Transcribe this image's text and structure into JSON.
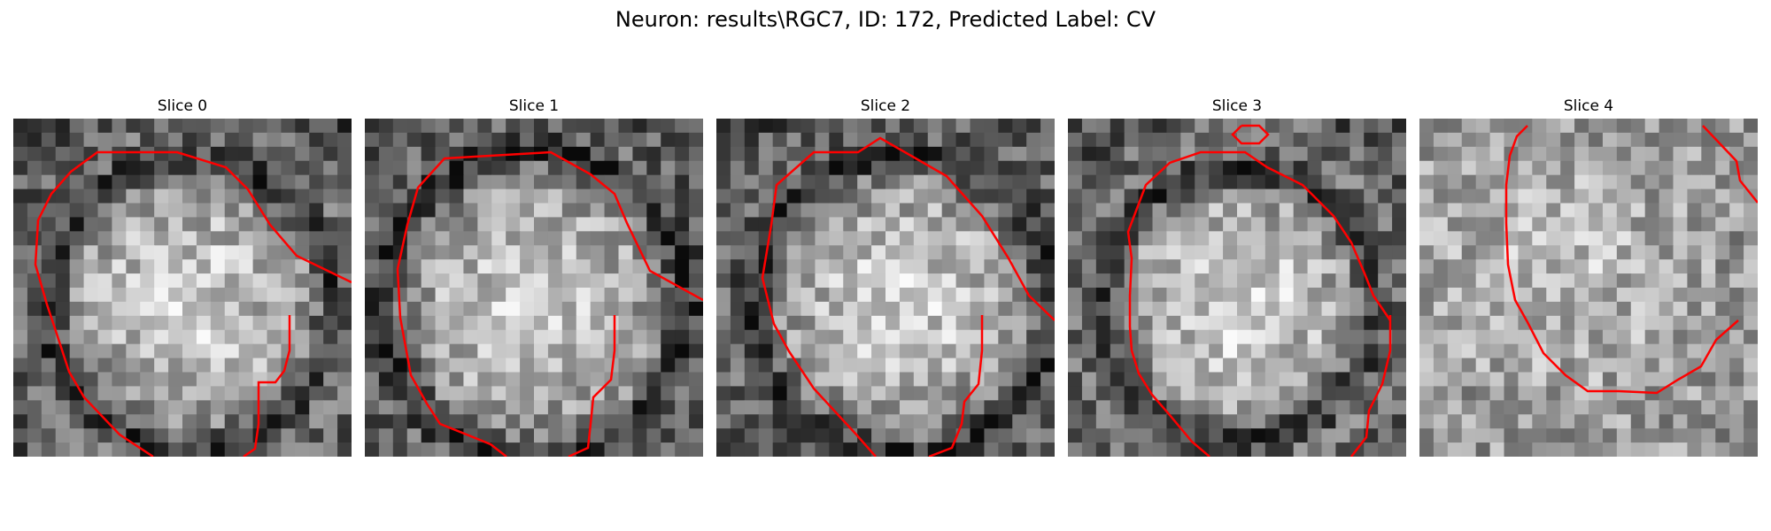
{
  "figure": {
    "title": "Neuron: results\\RGC7, ID: 172, Predicted Label: CV",
    "contour_color": "#ff0000",
    "colormap": "gray",
    "panels": [
      {
        "title": "Slice 0",
        "seed": 11,
        "bright_center": [
          0.52,
          0.55
        ],
        "dark_ring": 0.42
      },
      {
        "title": "Slice 1",
        "seed": 23,
        "bright_center": [
          0.5,
          0.55
        ],
        "dark_ring": 0.45
      },
      {
        "title": "Slice 2",
        "seed": 37,
        "bright_center": [
          0.55,
          0.55
        ],
        "dark_ring": 0.44
      },
      {
        "title": "Slice 3",
        "seed": 41,
        "bright_center": [
          0.5,
          0.55
        ],
        "dark_ring": 0.4
      },
      {
        "title": "Slice 4",
        "seed": 53,
        "bright_center": [
          0.4,
          0.45
        ],
        "dark_ring": 0.5
      }
    ]
  }
}
